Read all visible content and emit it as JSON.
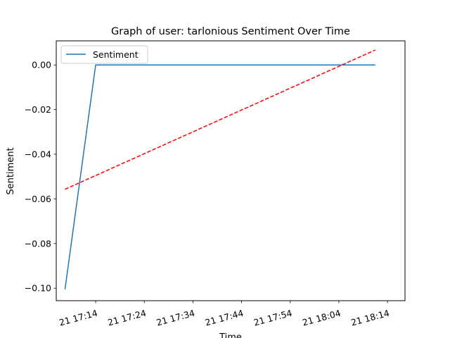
{
  "chart_data": {
    "type": "line",
    "title": "Graph of user: tarlonious Sentiment Over Time",
    "xlabel": "Time",
    "ylabel": "Sentiment",
    "x_tick_labels": [
      "21 17:14",
      "21 17:24",
      "21 17:34",
      "21 17:44",
      "21 17:54",
      "21 18:04",
      "21 18:14"
    ],
    "x_ticks": [
      "17:14",
      "17:24",
      "17:34",
      "17:44",
      "17:54",
      "18:04",
      "18:14"
    ],
    "y_ticks": [
      0.0,
      -0.02,
      -0.04,
      -0.06,
      -0.08,
      -0.1
    ],
    "y_tick_labels": [
      "0.00",
      "−0.02",
      "−0.04",
      "−0.06",
      "−0.08",
      "−0.10"
    ],
    "xlim": [
      "17:05.9",
      "18:17.6"
    ],
    "ylim": [
      -0.1056,
      0.0108
    ],
    "legend": {
      "position": "upper left",
      "entries": [
        "Sentiment"
      ]
    },
    "grid": false,
    "series": [
      {
        "name": "Sentiment",
        "color": "#1f77b4",
        "style": "solid",
        "x": [
          "17:07.7",
          "17:14.0",
          "18:11.5"
        ],
        "y": [
          -0.1005,
          0.0,
          0.0
        ]
      },
      {
        "color": "#ff0000",
        "style": "dashed",
        "x": [
          "17:07.7",
          "18:11.5"
        ],
        "y": [
          -0.0557,
          0.0067
        ]
      }
    ]
  }
}
